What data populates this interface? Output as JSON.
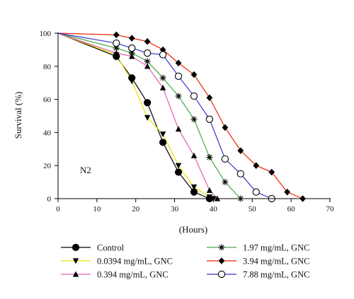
{
  "chart_data": {
    "type": "line",
    "title": "",
    "xlabel": "(Hours)",
    "ylabel": "Survival (%)",
    "xlim": [
      0,
      70
    ],
    "ylim": [
      0,
      100
    ],
    "xticks": [
      0,
      10,
      20,
      30,
      40,
      50,
      60,
      70
    ],
    "yticks": [
      0,
      20,
      40,
      60,
      80,
      100
    ],
    "grid": false,
    "legend_position": "bottom",
    "annotation": "N2",
    "series": [
      {
        "name": "Control",
        "color": "#000000",
        "marker": "filled-circle",
        "marker_fill": "#000000",
        "points": [
          [
            0,
            100
          ],
          [
            15,
            86
          ],
          [
            19,
            73
          ],
          [
            23,
            58
          ],
          [
            27,
            34
          ],
          [
            31,
            16
          ],
          [
            35,
            4
          ],
          [
            39,
            0
          ]
        ]
      },
      {
        "name": "0.0394 mg/mL, GNC",
        "color": "#e8e000",
        "marker": "filled-triangle-down",
        "marker_fill": "#000000",
        "points": [
          [
            0,
            100
          ],
          [
            15,
            87
          ],
          [
            19,
            71
          ],
          [
            23,
            49
          ],
          [
            27,
            39
          ],
          [
            31,
            20
          ],
          [
            35,
            7
          ],
          [
            39,
            1
          ],
          [
            40,
            0
          ]
        ]
      },
      {
        "name": "0.394 mg/mL, GNC",
        "color": "#e060b0",
        "marker": "filled-triangle-up",
        "marker_fill": "#000000",
        "points": [
          [
            0,
            100
          ],
          [
            15,
            88
          ],
          [
            19,
            86
          ],
          [
            23,
            80
          ],
          [
            27,
            67
          ],
          [
            31,
            42
          ],
          [
            35,
            26
          ],
          [
            39,
            5
          ],
          [
            41,
            0
          ]
        ]
      },
      {
        "name": "1.97 mg/mL, GNC",
        "color": "#44aa44",
        "marker": "asterisk",
        "marker_fill": "#000000",
        "points": [
          [
            0,
            100
          ],
          [
            15,
            91
          ],
          [
            19,
            88
          ],
          [
            23,
            83
          ],
          [
            27,
            73
          ],
          [
            31,
            62
          ],
          [
            35,
            48
          ],
          [
            39,
            25
          ],
          [
            43,
            10
          ],
          [
            47,
            0
          ]
        ]
      },
      {
        "name": "3.94 mg/mL, GNC",
        "color": "#ee2200",
        "marker": "filled-diamond",
        "marker_fill": "#000000",
        "points": [
          [
            0,
            100
          ],
          [
            15,
            99
          ],
          [
            19,
            97
          ],
          [
            23,
            95
          ],
          [
            27,
            90
          ],
          [
            31,
            82
          ],
          [
            35,
            75
          ],
          [
            39,
            61
          ],
          [
            43,
            43
          ],
          [
            47,
            29
          ],
          [
            51,
            20
          ],
          [
            55,
            16
          ],
          [
            59,
            4
          ],
          [
            63,
            0
          ]
        ]
      },
      {
        "name": "7.88 mg/mL, GNC",
        "color": "#3333cc",
        "marker": "open-circle",
        "marker_fill": "#ffffff",
        "points": [
          [
            0,
            100
          ],
          [
            15,
            94
          ],
          [
            19,
            91
          ],
          [
            23,
            88
          ],
          [
            27,
            87
          ],
          [
            31,
            74
          ],
          [
            35,
            62
          ],
          [
            39,
            48
          ],
          [
            43,
            24
          ],
          [
            47,
            15
          ],
          [
            51,
            4
          ],
          [
            55,
            0
          ]
        ]
      }
    ]
  }
}
